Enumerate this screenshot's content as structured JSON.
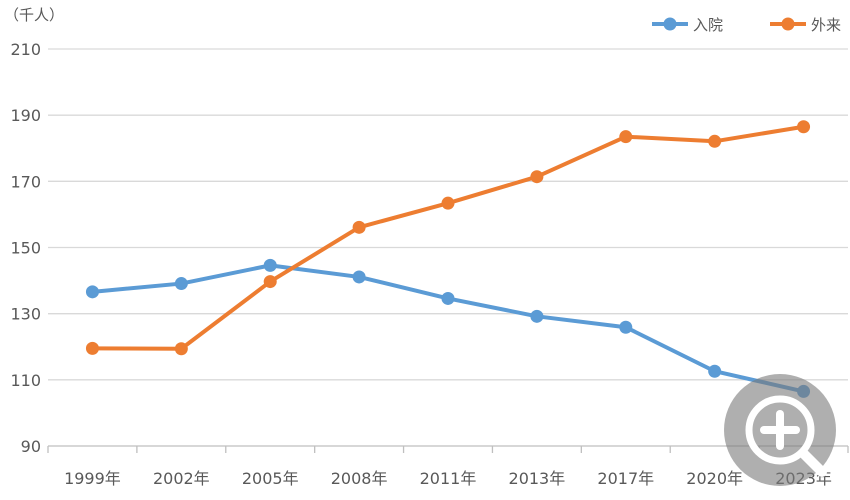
{
  "chart_data": {
    "type": "line",
    "unit_label": "（千人）",
    "categories": [
      "1999年",
      "2002年",
      "2005年",
      "2008年",
      "2011年",
      "2013年",
      "2017年",
      "2020年",
      "2023年"
    ],
    "series": [
      {
        "name": "入院",
        "color": "#5b9bd5",
        "values": [
          136.6,
          139.1,
          144.6,
          141.1,
          134.6,
          129.2,
          125.9,
          112.6,
          106.5
        ]
      },
      {
        "name": "外来",
        "color": "#ed7d31",
        "values": [
          119.5,
          119.4,
          139.7,
          156.1,
          163.4,
          171.4,
          183.5,
          182.1,
          186.5
        ]
      }
    ],
    "ylim": [
      90,
      210
    ],
    "yticks": [
      90,
      110,
      130,
      150,
      170,
      190,
      210
    ],
    "grid": true,
    "legend_position": "top-right"
  },
  "overlay": {
    "icon": "zoom-in-icon"
  }
}
